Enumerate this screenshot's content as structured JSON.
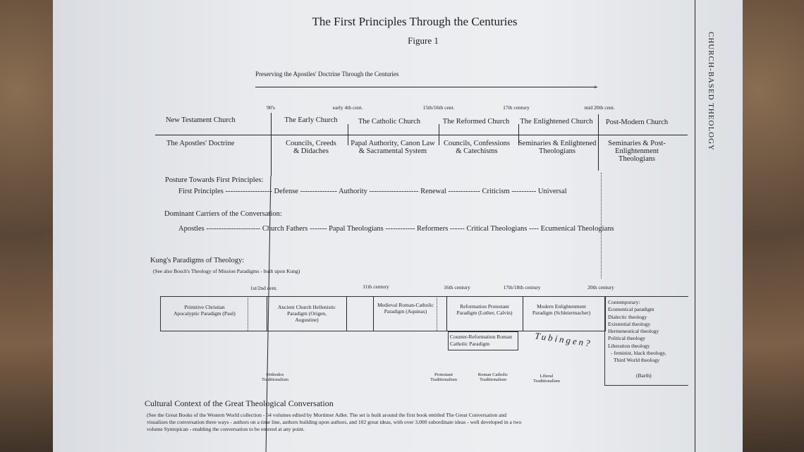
{
  "title": "The First Principles Through the Centuries",
  "subtitle": "Figure 1",
  "side_label": "CHURCH-BASED THEOLOGY",
  "arrow_label": "Preserving the Apostles' Doctrine Through the Centuries",
  "eras": {
    "dates": [
      "90's",
      "early 4th cent.",
      "15th/16th cent.",
      "17th century",
      "mid 20th cent."
    ],
    "churches": [
      "New Testament Church",
      "The Early Church",
      "The Catholic Church",
      "The Reformed Church",
      "The Enlightened Church",
      "Post-Modern Church"
    ],
    "carriers": [
      "The Apostles' Doctrine",
      "Councils, Creeds & Didaches",
      "Papal Authority, Canon Law & Sacramental System",
      "Councils, Confessions & Catechisms",
      "Seminaries & Enlightened Theologians",
      "Seminaries & Post-Enlightenment Theologians"
    ]
  },
  "posture": {
    "heading": "Posture Towards First Principles:",
    "line": "First Principles ------------------- Defense --------------- Authority -------------------- Renewal ------------- Criticism ---------- Universal"
  },
  "dominant": {
    "heading": "Dominant Carriers of the Conversation:",
    "line": "Apostles ---------------------- Church Fathers ------- Papal Theologians ------------ Reformers ------ Critical Theologians ---- Ecumenical Theologians"
  },
  "kung": {
    "heading": "Kung's Paradigms of Theology:",
    "note": "(See also Bosch's Theology of Mission Paradigms - built upon Kung)",
    "dates": [
      "1st/2nd cent.",
      "11th century",
      "16th century",
      "17th/18th century",
      "20th century"
    ],
    "paradigms": [
      "Primitive Christian Apocalyptic Paradigm (Paul)",
      "Ancient Church Hellenistic Paradigm (Origen, Augustine)",
      "Medieval Roman-Catholic Paradigm (Aquinas)",
      "Reformation Protestant Paradigm (Luther, Calvin)",
      "Modern Enlightenment Paradigm (Schleiermacher)"
    ],
    "contemporary": [
      "Contemporary:",
      "Ecumenical paradigm",
      "Dialectic theology",
      "Existential theology",
      "Hermeneutical theology",
      "Political theology",
      "Liberation theology",
      "- feminist, black theology,",
      "Third World theology"
    ],
    "barth": "(Barth)",
    "counter": "Counter-Reformation Roman Catholic Paradigm",
    "handwritten": "Tubingen?",
    "traditionalisms": [
      "Orthodox Traditionalism",
      "Protestant Traditionalism",
      "Roman Catholic Traditionalism",
      "Liberal Traditionalism"
    ]
  },
  "cultural": {
    "heading": "Cultural Context of the Great Theological Conversation",
    "text": "(See the Great Books of the Western World collection - 54 volumes edited by Mortimer Adler.  The set is built around the first book entitled The Great Conversation and visualizes the conversation three ways - authors on a time line, authors building upon authors, and 102 great ideas, with over 3,000 subordinate ideas - well developed in a two volume Syntopican - enabling the conversation to be entered at any point."
  }
}
